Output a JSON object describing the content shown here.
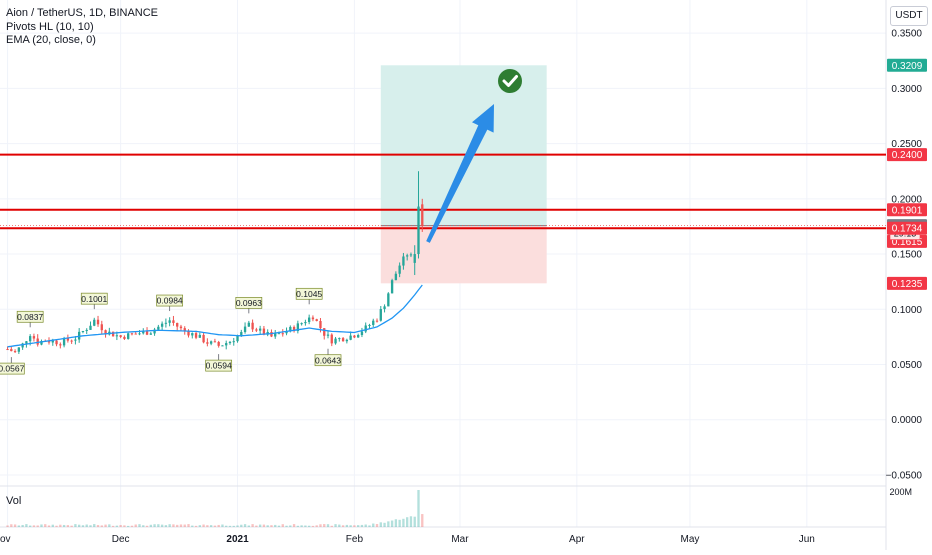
{
  "header": {
    "symbol_line": "Aion / TetherUS, 1D, BINANCE",
    "indicator_1": "Pivots HL (10, 10)",
    "indicator_2": "EMA (20, close, 0)",
    "currency_unit": "USDT",
    "volume_label": "Vol",
    "volume_axis_label": "200M"
  },
  "colors": {
    "up": "#26a69a",
    "down": "#ef5350",
    "ema": "#2196f3",
    "red_line": "#e00000",
    "profit_zone": "#d7efec",
    "loss_zone": "#fbdedd",
    "arrow": "#2b8ce6",
    "check": "#2e7d32",
    "pivot_box": "#f3f7d8",
    "price_tag_red": "#f23645",
    "price_tag_gray": "#787b86",
    "price_tag_teal": "#22ab94"
  },
  "icons": {
    "check": "check-circle-icon",
    "arrow": "up-right-arrow-icon"
  },
  "chart_data": {
    "type": "candlestick",
    "y_axis": {
      "range": [
        -0.06,
        0.38
      ],
      "ticks": [
        "0.3500",
        "0.3000",
        "0.2500",
        "0.2000",
        "0.1500",
        "0.1000",
        "0.0500",
        "0.0000",
        "−0.0500"
      ],
      "tick_values": [
        0.35,
        0.3,
        0.25,
        0.2,
        0.15,
        0.1,
        0.05,
        0.0,
        -0.05
      ]
    },
    "x_axis": {
      "ticks": [
        "ov",
        "Dec",
        "2021",
        "Feb",
        "Mar",
        "Apr",
        "May",
        "Jun"
      ],
      "tick_days": [
        0,
        30,
        61,
        92,
        120,
        151,
        181,
        212
      ],
      "day_range": [
        -2,
        233
      ]
    },
    "grid": true,
    "horizontal_levels": [
      {
        "value": 0.24,
        "label": "0.2400",
        "color": "red"
      },
      {
        "value": 0.1901,
        "label": "0.1901",
        "color": "red"
      },
      {
        "value": 0.1734,
        "label": "0.1734",
        "color": "red"
      }
    ],
    "price_tags": [
      {
        "value": 0.3209,
        "label": "0.3209",
        "kind": "teal"
      },
      {
        "value": 0.1757,
        "label": "0.1757",
        "kind": "gray"
      },
      {
        "value": 0.1615,
        "label": "0.1615",
        "kind": "red"
      },
      {
        "value": 0.1235,
        "label": "0.1235",
        "kind": "red"
      },
      {
        "value": 0.1685,
        "label": "29:13",
        "kind": "countdown"
      }
    ],
    "position": {
      "start_day": 99,
      "end_day": 143,
      "entry": 0.1757,
      "target": 0.3209,
      "stop": 0.1235
    },
    "pivots": [
      {
        "day": 6,
        "value": 0.0837,
        "label": "0.0837",
        "kind": "high"
      },
      {
        "day": 23,
        "value": 0.1001,
        "label": "0.1001",
        "kind": "high"
      },
      {
        "day": 43,
        "value": 0.0984,
        "label": "0.0984",
        "kind": "high"
      },
      {
        "day": 64,
        "value": 0.0963,
        "label": "0.0963",
        "kind": "high"
      },
      {
        "day": 80,
        "value": 0.1045,
        "label": "0.1045",
        "kind": "high"
      },
      {
        "day": 1,
        "value": 0.0567,
        "label": "0.0567",
        "kind": "low"
      },
      {
        "day": 56,
        "value": 0.0594,
        "label": "0.0594",
        "kind": "low"
      },
      {
        "day": 85,
        "value": 0.0643,
        "label": "0.0643",
        "kind": "low"
      }
    ],
    "ohlc_keyframes": [
      [
        0,
        0.064
      ],
      [
        2,
        0.061
      ],
      [
        4,
        0.068
      ],
      [
        6,
        0.078
      ],
      [
        8,
        0.07
      ],
      [
        10,
        0.072
      ],
      [
        14,
        0.07
      ],
      [
        18,
        0.074
      ],
      [
        21,
        0.083
      ],
      [
        23,
        0.09
      ],
      [
        26,
        0.08
      ],
      [
        30,
        0.075
      ],
      [
        34,
        0.078
      ],
      [
        38,
        0.08
      ],
      [
        41,
        0.086
      ],
      [
        43,
        0.09
      ],
      [
        46,
        0.082
      ],
      [
        50,
        0.076
      ],
      [
        53,
        0.07
      ],
      [
        56,
        0.067
      ],
      [
        59,
        0.071
      ],
      [
        62,
        0.078
      ],
      [
        64,
        0.086
      ],
      [
        67,
        0.08
      ],
      [
        70,
        0.075
      ],
      [
        73,
        0.079
      ],
      [
        76,
        0.083
      ],
      [
        79,
        0.09
      ],
      [
        81,
        0.094
      ],
      [
        84,
        0.078
      ],
      [
        86,
        0.072
      ],
      [
        89,
        0.074
      ],
      [
        92,
        0.077
      ],
      [
        95,
        0.083
      ],
      [
        98,
        0.092
      ],
      [
        100,
        0.105
      ],
      [
        102,
        0.125
      ],
      [
        104,
        0.14
      ],
      [
        106,
        0.15
      ],
      [
        108,
        0.145
      ],
      [
        109,
        0.19
      ],
      [
        110,
        0.1757
      ]
    ],
    "special_candles": [
      {
        "day": 108,
        "open": 0.142,
        "high": 0.158,
        "low": 0.131,
        "close": 0.15
      },
      {
        "day": 109,
        "open": 0.15,
        "high": 0.225,
        "low": 0.146,
        "close": 0.193
      },
      {
        "day": 110,
        "open": 0.195,
        "high": 0.2,
        "low": 0.17,
        "close": 0.1757
      }
    ],
    "ema_keyframes": [
      [
        0,
        0.066
      ],
      [
        10,
        0.071
      ],
      [
        20,
        0.076
      ],
      [
        30,
        0.079
      ],
      [
        40,
        0.081
      ],
      [
        50,
        0.08
      ],
      [
        56,
        0.077
      ],
      [
        62,
        0.076
      ],
      [
        70,
        0.078
      ],
      [
        80,
        0.083
      ],
      [
        86,
        0.08
      ],
      [
        92,
        0.079
      ],
      [
        98,
        0.084
      ],
      [
        102,
        0.092
      ],
      [
        105,
        0.101
      ],
      [
        108,
        0.113
      ],
      [
        110,
        0.122
      ]
    ],
    "volume_max_label": "200M"
  }
}
